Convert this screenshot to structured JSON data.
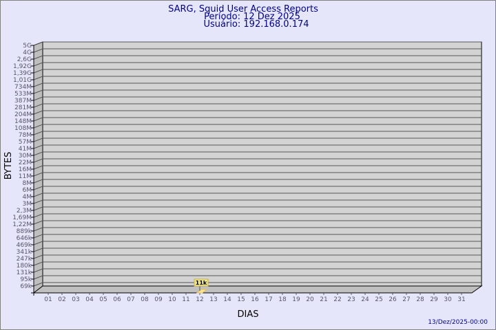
{
  "chart_data": {
    "type": "bar",
    "title": "SARG, Squid User Access Reports",
    "subtitle": [
      "Período: 12 Dez 2025",
      "Usuário: 192.168.0.174"
    ],
    "xlabel": "DIAS",
    "ylabel": "BYTES",
    "footer": "13/Dez/2025-00:00",
    "y_scale": "log",
    "y_tick_labels": [
      "5G",
      "4G",
      "2,6G",
      "1,92G",
      "1,39G",
      "1,01G",
      "734M",
      "533M",
      "387M",
      "281M",
      "204M",
      "148M",
      "108M",
      "78M",
      "57M",
      "41M",
      "30M",
      "22M",
      "16M",
      "11M",
      "8M",
      "6M",
      "4M",
      "3M",
      "2,3M",
      "1,69M",
      "1,22M",
      "889k",
      "646k",
      "469k",
      "341k",
      "247k",
      "180k",
      "131k",
      "95k",
      "69k"
    ],
    "categories": [
      "01",
      "02",
      "03",
      "04",
      "05",
      "06",
      "07",
      "08",
      "09",
      "10",
      "11",
      "12",
      "13",
      "14",
      "15",
      "16",
      "17",
      "18",
      "19",
      "20",
      "21",
      "22",
      "23",
      "24",
      "25",
      "26",
      "27",
      "28",
      "29",
      "30",
      "31"
    ],
    "values": [
      null,
      null,
      null,
      null,
      null,
      null,
      null,
      null,
      null,
      null,
      null,
      11000,
      null,
      null,
      null,
      null,
      null,
      null,
      null,
      null,
      null,
      null,
      null,
      null,
      null,
      null,
      null,
      null,
      null,
      null,
      null
    ],
    "data_labels": {
      "12": "11k"
    },
    "grid": true,
    "colors": {
      "background": "#e6e6fa",
      "plot": "#d3d3d3",
      "bar": "#ffe08c",
      "label_bg": "#f0e68c",
      "title": "#00008b"
    }
  }
}
